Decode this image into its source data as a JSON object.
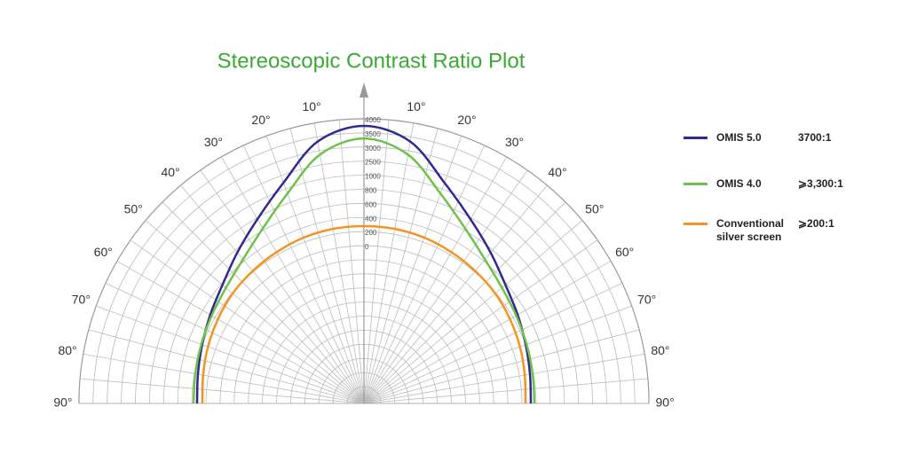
{
  "chart_data": {
    "type": "polar",
    "title": "Stereoscopic Contrast Ratio Plot",
    "thetaticks": [
      {
        "value": -90,
        "label": "90°"
      },
      {
        "value": -80,
        "label": "80°"
      },
      {
        "value": -70,
        "label": "70°"
      },
      {
        "value": -60,
        "label": "60°"
      },
      {
        "value": -50,
        "label": "50°"
      },
      {
        "value": -40,
        "label": "40°"
      },
      {
        "value": -30,
        "label": "30°"
      },
      {
        "value": -20,
        "label": "20°"
      },
      {
        "value": -10,
        "label": "10°"
      },
      {
        "value": 10,
        "label": "10°"
      },
      {
        "value": 20,
        "label": "20°"
      },
      {
        "value": 30,
        "label": "30°"
      },
      {
        "value": 40,
        "label": "40°"
      },
      {
        "value": 50,
        "label": "50°"
      },
      {
        "value": 60,
        "label": "60°"
      },
      {
        "value": 70,
        "label": "70°"
      },
      {
        "value": 80,
        "label": "80°"
      },
      {
        "value": 90,
        "label": "90°"
      }
    ],
    "rticks": [
      0,
      200,
      400,
      600,
      800,
      1000,
      2500,
      3000,
      3500,
      4000
    ],
    "x": [
      -90,
      -80,
      -70,
      -60,
      -50,
      -40,
      -30,
      -20,
      -10,
      0,
      10,
      20,
      30,
      40,
      50,
      60,
      70,
      80,
      90
    ],
    "series": [
      {
        "name": "OMIS 5.0",
        "ratio": "3700:1",
        "color": "#2e2a8f",
        "values": [
          126,
          150,
          200,
          276,
          378,
          554,
          780,
          1705,
          3335,
          3745,
          3335,
          1705,
          780,
          554,
          378,
          276,
          200,
          150,
          126
        ]
      },
      {
        "name": "OMIS 4.0",
        "ratio": "⩾3,300:1",
        "color": "#6cc24a",
        "values": [
          176,
          188,
          214,
          252,
          314,
          428,
          628,
          930,
          2865,
          3300,
          2865,
          930,
          628,
          428,
          314,
          252,
          214,
          188,
          176
        ]
      },
      {
        "name": "Conventional silver screen",
        "ratio": "⩾200:1",
        "color": "#f39323",
        "values": [
          50,
          75,
          113,
          151,
          189,
          214,
          239,
          264,
          276,
          276,
          276,
          264,
          239,
          214,
          189,
          151,
          113,
          75,
          50
        ]
      }
    ]
  }
}
